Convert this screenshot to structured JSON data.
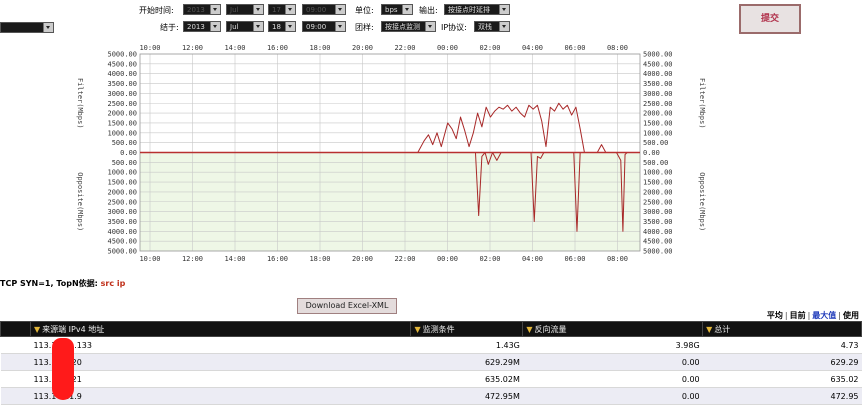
{
  "form": {
    "start_label": "开始时间:",
    "end_label": "结于:",
    "start": {
      "year": "2013",
      "month": "Jul",
      "day": "17",
      "time": "09:00"
    },
    "end": {
      "year": "2013",
      "month": "Jul",
      "day": "18",
      "time": "09:00"
    },
    "unit_label": "单位:",
    "unit_value": "bps",
    "output_label": "输出:",
    "output_value": "按接点时延排",
    "filter_label": "团样:",
    "filter_value": "按接点监测",
    "ip_label": "IP协议:",
    "ip_value": "双栈",
    "submit_label": "提交"
  },
  "chart_data": {
    "type": "line",
    "x_ticks": [
      "10:00",
      "12:00",
      "14:00",
      "16:00",
      "18:00",
      "20:00",
      "22:00",
      "00:00",
      "02:00",
      "04:00",
      "06:00",
      "08:00"
    ],
    "y_ticks": [
      "5000.00",
      "4500.00",
      "4000.00",
      "3500.00",
      "3000.00",
      "2500.00",
      "2000.00",
      "1500.00",
      "1000.00",
      "500.00",
      "0.00",
      "500.00",
      "1000.00",
      "1500.00",
      "2000.00",
      "2500.00",
      "3000.00",
      "3500.00",
      "4000.00",
      "4500.00",
      "5000.00"
    ],
    "ylabel_top": "Filter(Mbps)",
    "ylabel_bottom": "Opposite(Mbps)",
    "ylim": [
      -5000,
      5000
    ],
    "xlim": [
      9.6,
      33.0
    ],
    "series": [
      {
        "color": "#a82828",
        "x": [
          9.6,
          22.6,
          22.9,
          23.1,
          23.3,
          23.5,
          23.7,
          23.9,
          24.0,
          24.2,
          24.4,
          24.6,
          24.8,
          25.0,
          25.2,
          25.4,
          25.6,
          25.8,
          26.0,
          26.2,
          26.4,
          26.6,
          26.8,
          27.0,
          27.2,
          27.4,
          27.6,
          27.8,
          28.0,
          28.2,
          28.4,
          28.6,
          28.8,
          29.0,
          29.2,
          29.4,
          29.6,
          29.8,
          30.0,
          30.2,
          30.4,
          30.6,
          30.8,
          31.0,
          31.2,
          31.4,
          31.6,
          31.8,
          32.0,
          32.2,
          32.4
        ],
        "y": [
          0,
          0,
          600,
          900,
          400,
          1000,
          300,
          1100,
          1500,
          1200,
          700,
          1800,
          1100,
          300,
          1000,
          2000,
          1300,
          2300,
          1800,
          2100,
          2300,
          2200,
          2400,
          2100,
          2300,
          2000,
          1800,
          2400,
          2200,
          2400,
          1600,
          300,
          2300,
          2100,
          2500,
          2200,
          2400,
          1900,
          2300,
          1200,
          0,
          0,
          0,
          0,
          400,
          0,
          0,
          0,
          0,
          0,
          0
        ]
      },
      {
        "color": "#a82828",
        "x": [
          9.6,
          25.3,
          25.45,
          25.6,
          25.75,
          25.9,
          26.1,
          26.3,
          26.5,
          26.7,
          26.9,
          27.1,
          27.3,
          27.5,
          27.7,
          27.9,
          28.05,
          28.2,
          28.35,
          28.5,
          28.7,
          28.9,
          29.1,
          29.3,
          29.5,
          29.7,
          29.9,
          30.05,
          30.2,
          30.35,
          30.5,
          30.7,
          30.9,
          31.1,
          31.3,
          31.5,
          31.7,
          31.9,
          32.1,
          32.2,
          32.3,
          32.4,
          32.6
        ],
        "y": [
          0,
          0,
          -3200,
          -200,
          0,
          -600,
          0,
          -400,
          0,
          0,
          0,
          0,
          0,
          0,
          0,
          0,
          -3500,
          -200,
          -300,
          0,
          0,
          0,
          0,
          0,
          0,
          0,
          0,
          -4000,
          0,
          0,
          0,
          0,
          0,
          0,
          0,
          0,
          0,
          0,
          -400,
          -4000,
          -100,
          0,
          0
        ]
      }
    ],
    "grid": true
  },
  "filter_info": {
    "tcp_label": "TCP SYN=1, ",
    "topn_label": "TopN依据: ",
    "topn_value": "src ip"
  },
  "download_label": "Download Excel-XML",
  "sort": {
    "options": [
      "平均",
      "目前",
      "最大值",
      "使用"
    ],
    "active": "最大值"
  },
  "table": {
    "columns": [
      "来源端 IPv4 地址",
      "监测条件",
      "反向流量",
      "总计"
    ],
    "rows": [
      {
        "ip": "113.1···21.133",
        "cond": "1.43G",
        "rev": "3.98G",
        "total": "4.73"
      },
      {
        "ip": "113.1···1.20",
        "cond": "629.29M",
        "rev": "0.00",
        "total": "629.29"
      },
      {
        "ip": "113.1···1.21",
        "cond": "635.02M",
        "rev": "0.00",
        "total": "635.02"
      },
      {
        "ip": "113.1···21.9",
        "cond": "472.95M",
        "rev": "0.00",
        "total": "472.95"
      }
    ]
  }
}
